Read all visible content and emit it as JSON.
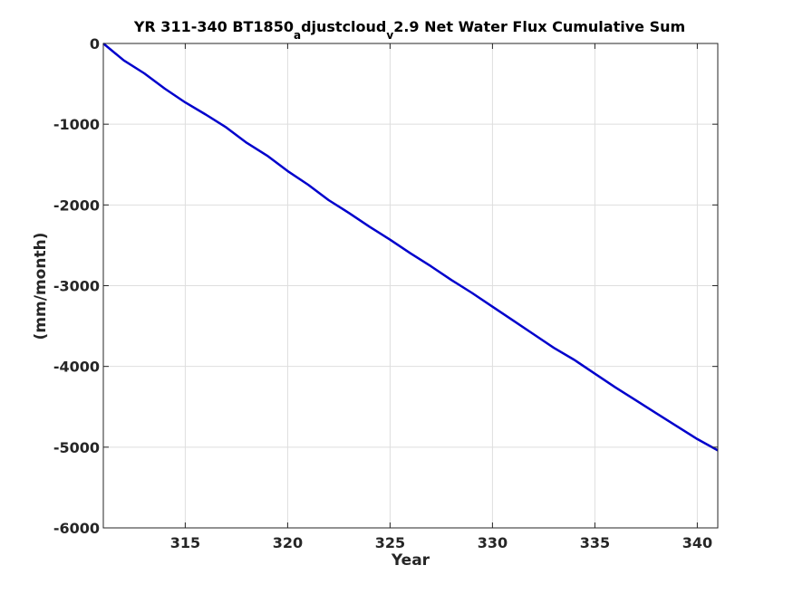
{
  "chart_data": {
    "type": "line",
    "title_parts": {
      "t1": "YR 311-340 BT1850",
      "sub1": "a",
      "t2": "djustcloud",
      "sub2": "v",
      "t3": "2.9 Net Water Flux Cumulative Sum"
    },
    "xlabel": "Year",
    "ylabel": "(mm/month)",
    "xlim": [
      311,
      341
    ],
    "ylim": [
      -6000,
      0
    ],
    "xticks": [
      315,
      320,
      325,
      330,
      335,
      340
    ],
    "yticks": [
      0,
      -1000,
      -2000,
      -3000,
      -4000,
      -5000,
      -6000
    ],
    "grid": true,
    "series": [
      {
        "color": "#0000cc",
        "x": [
          311,
          312,
          313,
          314,
          315,
          316,
          317,
          318,
          319,
          320,
          321,
          322,
          323,
          324,
          325,
          326,
          327,
          328,
          329,
          330,
          331,
          332,
          333,
          334,
          335,
          336,
          337,
          338,
          339,
          340,
          341
        ],
        "y": [
          0,
          -210,
          -370,
          -560,
          -730,
          -880,
          -1040,
          -1230,
          -1390,
          -1580,
          -1750,
          -1940,
          -2100,
          -2270,
          -2430,
          -2600,
          -2760,
          -2930,
          -3090,
          -3260,
          -3430,
          -3600,
          -3770,
          -3920,
          -4090,
          -4260,
          -4420,
          -4580,
          -4740,
          -4900,
          -5040
        ]
      }
    ]
  }
}
